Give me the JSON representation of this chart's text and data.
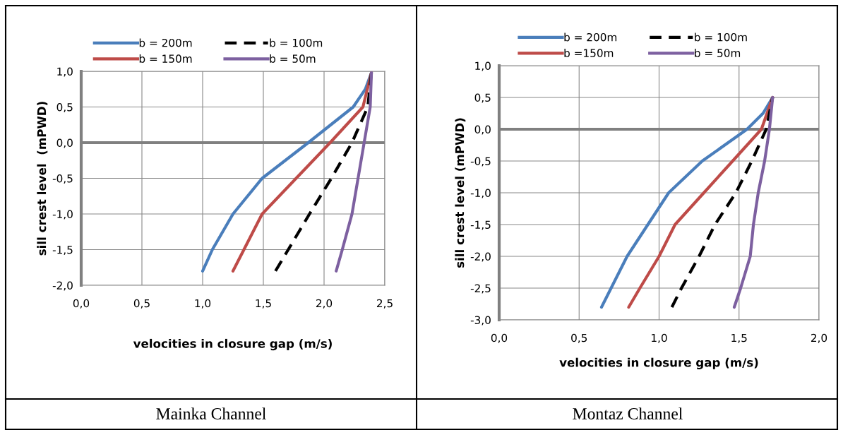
{
  "chart_data": [
    {
      "type": "line",
      "xlabel": "velocities in closure gap (m/s)",
      "ylabel": "sill crest level  (mPWD)",
      "annotations": [
        "Mainka Channel"
      ],
      "grid": true,
      "legend": "top",
      "line_style": "solid",
      "xlim": [
        0,
        2.5
      ],
      "ylim": [
        -2.0,
        1.0
      ],
      "xticks": [
        {
          "value": 0,
          "label": "0,0"
        },
        {
          "value": 0.5,
          "label": "0,5"
        },
        {
          "value": 1.0,
          "label": "1,0"
        },
        {
          "value": 1.5,
          "label": "1,5"
        },
        {
          "value": 2.0,
          "label": "2,0"
        },
        {
          "value": 2.5,
          "label": "2,5"
        }
      ],
      "yticks": [
        {
          "value": 1.0,
          "label": "1,0"
        },
        {
          "value": 0.5,
          "label": "0,5"
        },
        {
          "value": 0,
          "label": "0,0"
        },
        {
          "value": -0.5,
          "label": "-0,5"
        },
        {
          "value": -1.0,
          "label": "-1,0"
        },
        {
          "value": -1.5,
          "label": "-1,5"
        },
        {
          "value": -2.0,
          "label": "-2,0"
        }
      ],
      "ref_lines": [
        {
          "axis": "y",
          "value": 0,
          "color": "#808080"
        }
      ],
      "series": [
        {
          "name": "b = 200m",
          "color": "#4a7ebb",
          "x": [
            1.0,
            1.08,
            1.25,
            1.49,
            1.87,
            2.24,
            2.34,
            2.39
          ],
          "values": [
            -1.8,
            -1.5,
            -1.0,
            -0.5,
            0.0,
            0.5,
            0.75,
            0.98
          ]
        },
        {
          "name": "b = 150m",
          "color": "#be4b48",
          "x": [
            1.25,
            1.34,
            1.49,
            1.77,
            2.05,
            2.32,
            2.39
          ],
          "values": [
            -1.8,
            -1.5,
            -1.0,
            -0.5,
            0.0,
            0.5,
            0.98
          ]
        },
        {
          "name": "b = 100m",
          "color": "#000000",
          "line_style": "dashed",
          "x": [
            1.6,
            1.88,
            2.06,
            2.23,
            2.36,
            2.39
          ],
          "values": [
            -1.8,
            -1.0,
            -0.5,
            0.0,
            0.5,
            0.98
          ]
        },
        {
          "name": "b = 50m",
          "color": "#7d60a0",
          "x": [
            2.1,
            2.15,
            2.23,
            2.28,
            2.33,
            2.38,
            2.39
          ],
          "values": [
            -1.8,
            -1.5,
            -1.0,
            -0.5,
            0.0,
            0.5,
            0.98
          ]
        }
      ]
    },
    {
      "type": "line",
      "xlabel": "velocities in closure gap (m/s)",
      "ylabel": "sill crest level (mPWD)",
      "annotations": [
        "Montaz Channel"
      ],
      "grid": true,
      "legend": "top",
      "line_style": "solid",
      "xlim": [
        0,
        2.0
      ],
      "ylim": [
        -3.0,
        1.0
      ],
      "xticks": [
        {
          "value": 0,
          "label": "0,0"
        },
        {
          "value": 0.5,
          "label": "0,5"
        },
        {
          "value": 1.0,
          "label": "1,0"
        },
        {
          "value": 1.5,
          "label": "1,5"
        },
        {
          "value": 2.0,
          "label": "2,0"
        }
      ],
      "yticks": [
        {
          "value": 1.0,
          "label": "1,0"
        },
        {
          "value": 0.5,
          "label": "0,5"
        },
        {
          "value": 0,
          "label": "0,0"
        },
        {
          "value": -0.5,
          "label": "-0,5"
        },
        {
          "value": -1.0,
          "label": "-1,0"
        },
        {
          "value": -1.5,
          "label": "-1,5"
        },
        {
          "value": -2.0,
          "label": "-2,0"
        },
        {
          "value": -2.5,
          "label": "-2,5"
        },
        {
          "value": -3.0,
          "label": "-3,0"
        }
      ],
      "ref_lines": [
        {
          "axis": "y",
          "value": 0,
          "color": "#808080"
        }
      ],
      "series": [
        {
          "name": "b = 200m",
          "color": "#4a7ebb",
          "x": [
            0.64,
            0.7,
            0.8,
            0.93,
            1.06,
            1.27,
            1.55,
            1.65,
            1.71
          ],
          "values": [
            -2.8,
            -2.5,
            -2.0,
            -1.5,
            -1.0,
            -0.5,
            0.0,
            0.25,
            0.5
          ]
        },
        {
          "name": "b =150m",
          "color": "#be4b48",
          "x": [
            0.81,
            0.88,
            1.0,
            1.1,
            1.28,
            1.46,
            1.64,
            1.71
          ],
          "values": [
            -2.8,
            -2.5,
            -2.0,
            -1.5,
            -1.0,
            -0.5,
            0.0,
            0.5
          ]
        },
        {
          "name": "b = 100m",
          "color": "#000000",
          "line_style": "dashed",
          "x": [
            1.08,
            1.14,
            1.25,
            1.35,
            1.48,
            1.58,
            1.67,
            1.71
          ],
          "values": [
            -2.8,
            -2.5,
            -2.0,
            -1.5,
            -1.0,
            -0.5,
            0.0,
            0.5
          ]
        },
        {
          "name": "b = 50m",
          "color": "#7d60a0",
          "x": [
            1.47,
            1.51,
            1.57,
            1.59,
            1.62,
            1.66,
            1.69,
            1.71
          ],
          "values": [
            -2.8,
            -2.5,
            -2.0,
            -1.5,
            -1.0,
            -0.5,
            0.0,
            0.5
          ]
        }
      ]
    }
  ]
}
